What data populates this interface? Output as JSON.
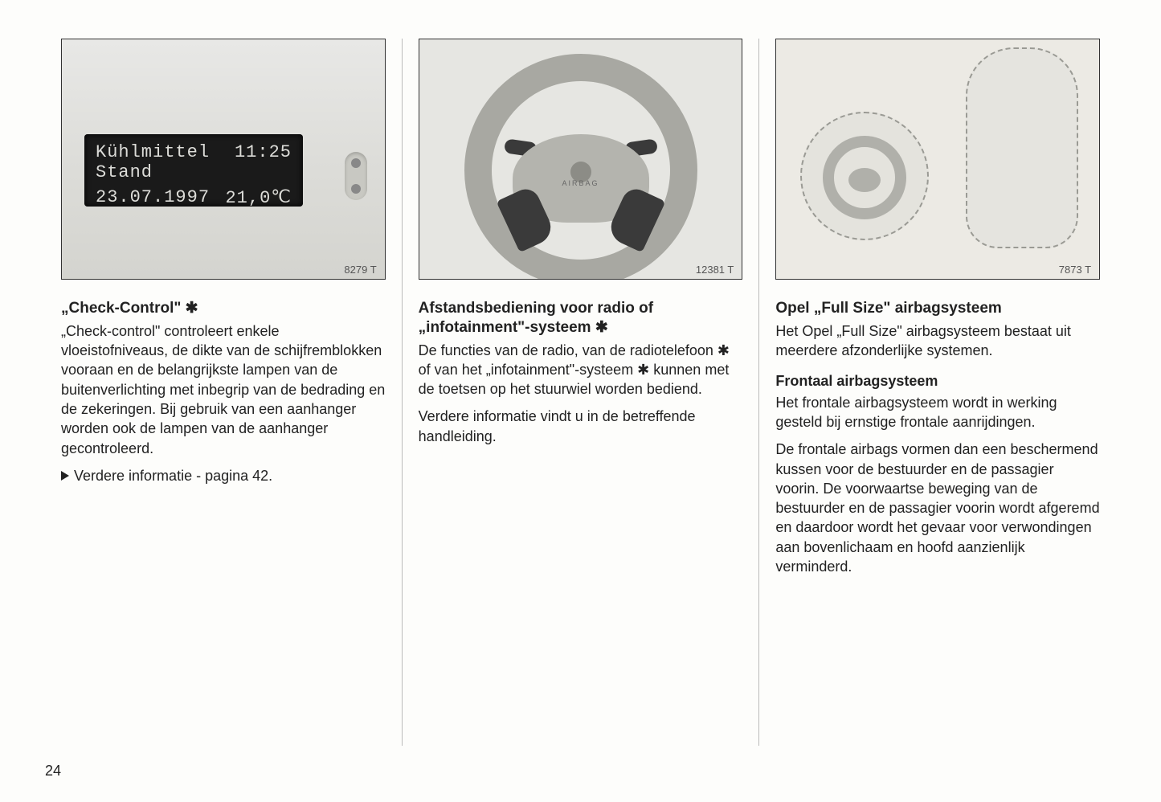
{
  "page_number": "24",
  "col1": {
    "fig_label": "8279 T",
    "lcd_line1_left": "Kühlmittel",
    "lcd_line1_right": "11:25",
    "lcd_line2_left_a": "Stand",
    "lcd_line3_left": "23.07.1997",
    "lcd_line3_right": "21,0℃",
    "heading": "„Check-Control\" ✱",
    "p1": "„Check-control\" controleert enkele vloeistofniveaus, de dikte van de schijfremblokken vooraan en de belangrijkste lampen van de buitenverlichting met inbegrip van de bedrading en de zekeringen. Bij gebruik van een aanhanger worden ook de lampen van de aanhanger gecontroleerd.",
    "p2": "Verdere informatie - pagina 42."
  },
  "col2": {
    "fig_label": "12381 T",
    "airbag_text": "AIRBAG",
    "heading": "Afstandsbediening voor radio of „infotainment\"-systeem ✱",
    "p1": "De functies van de radio, van de radiotelefoon ✱ of van het „infotainment\"-systeem ✱ kunnen met de toetsen op het stuurwiel worden bediend.",
    "p2": "Verdere informatie vindt u in de betreffende handleiding."
  },
  "col3": {
    "fig_label": "7873 T",
    "heading": "Opel „Full Size\" airbagsysteem",
    "p1": "Het Opel „Full Size\" airbagsysteem bestaat uit meerdere afzonderlijke systemen.",
    "subheading": "Frontaal airbagsysteem",
    "p2": "Het frontale airbagsysteem wordt in werking gesteld bij ernstige frontale aanrijdingen.",
    "p3": "De frontale airbags vormen dan een beschermend kussen voor de bestuurder en de passagier voorin. De voorwaartse beweging van de bestuurder en de passagier voorin wordt afgeremd en daardoor wordt het gevaar voor verwondingen aan bovenlichaam en hoofd aanzienlijk verminderd."
  }
}
